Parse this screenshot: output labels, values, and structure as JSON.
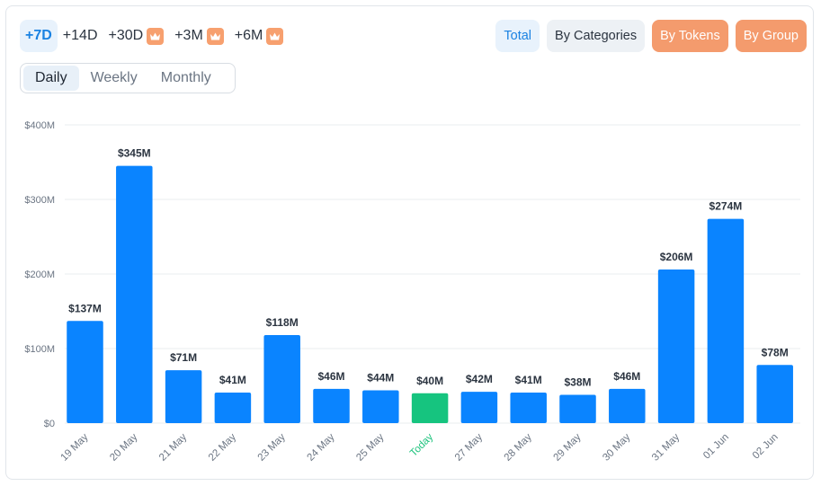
{
  "periods": [
    {
      "label": "+7D",
      "active": true,
      "premium": false
    },
    {
      "label": "+14D",
      "active": false,
      "premium": false
    },
    {
      "label": "+30D",
      "active": false,
      "premium": true
    },
    {
      "label": "+3M",
      "active": false,
      "premium": true
    },
    {
      "label": "+6M",
      "active": false,
      "premium": true
    }
  ],
  "views": [
    {
      "label": "Daily",
      "active": true
    },
    {
      "label": "Weekly",
      "active": false
    },
    {
      "label": "Monthly",
      "active": false
    }
  ],
  "modes": [
    {
      "label": "Total",
      "style": "total"
    },
    {
      "label": "By Categories",
      "style": "cat"
    },
    {
      "label": "By Tokens",
      "style": "premium"
    },
    {
      "label": "By Group",
      "style": "premium"
    }
  ],
  "colors": {
    "bar": "#0a84ff",
    "today_bar": "#16c47f",
    "today_label": "#1cc27c",
    "accent": "#1a82e2",
    "premium": "#f49b6d",
    "grid": "#e9ecef"
  },
  "chart_data": {
    "type": "bar",
    "categories": [
      "19 May",
      "20 May",
      "21 May",
      "22 May",
      "23 May",
      "24 May",
      "25 May",
      "Today",
      "27 May",
      "28 May",
      "29 May",
      "30 May",
      "31 May",
      "01 Jun",
      "02 Jun"
    ],
    "values": [
      137,
      345,
      71,
      41,
      118,
      46,
      44,
      40,
      42,
      41,
      38,
      46,
      206,
      274,
      78
    ],
    "value_labels": [
      "$137M",
      "$345M",
      "$71M",
      "$41M",
      "$118M",
      "$46M",
      "$44M",
      "$40M",
      "$42M",
      "$41M",
      "$38M",
      "$46M",
      "$206M",
      "$274M",
      "$78M"
    ],
    "highlight_category": "Today",
    "y_ticks": [
      {
        "value": 0,
        "label": "$0"
      },
      {
        "value": 100,
        "label": "$100M"
      },
      {
        "value": 200,
        "label": "$200M"
      },
      {
        "value": 300,
        "label": "$300M"
      },
      {
        "value": 400,
        "label": "$400M"
      }
    ],
    "ylim": [
      0,
      400
    ],
    "grid": true,
    "legend": "none"
  }
}
